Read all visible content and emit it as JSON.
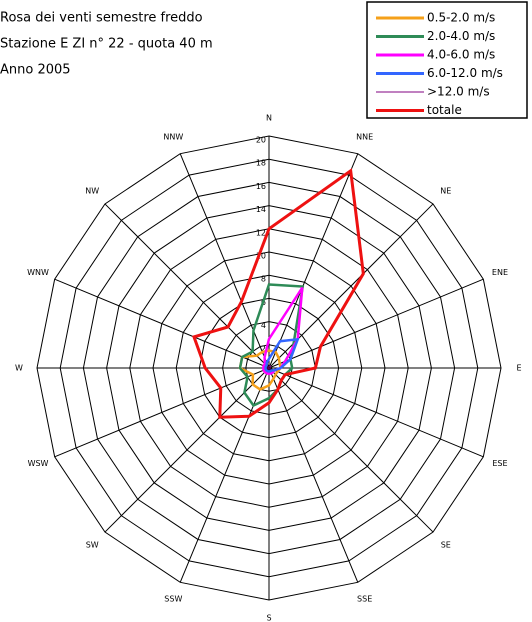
{
  "chart_data": {
    "type": "radar",
    "title": [
      "Rosa dei venti semestre freddo",
      "Stazione E ZI n° 22 - quota 40 m",
      "Anno 2005"
    ],
    "categories": [
      "N",
      "NNE",
      "NE",
      "ENE",
      "E",
      "ESE",
      "SE",
      "SSE",
      "S",
      "SSW",
      "SW",
      "WSW",
      "W",
      "WNW",
      "NW",
      "NNW"
    ],
    "rlim": [
      0,
      20
    ],
    "rticks": [
      2,
      4,
      6,
      8,
      10,
      12,
      14,
      16,
      18,
      20
    ],
    "legend": "upper right",
    "series": [
      {
        "name": "0.5-2.0 m/s",
        "color": "#f5a01a",
        "values": [
          1.5,
          1.5,
          1.2,
          1.0,
          1.0,
          0.8,
          0.8,
          1.0,
          1.5,
          2.0,
          2.0,
          1.5,
          2.5,
          2.5,
          1.5,
          1.5
        ]
      },
      {
        "name": "2.0-4.0 m/s",
        "color": "#2e8b57",
        "values": [
          7.2,
          7.6,
          3.0,
          2.0,
          2.0,
          1.5,
          1.5,
          2.0,
          2.6,
          3.5,
          3.0,
          2.0,
          2.5,
          2.5,
          2.0,
          3.5
        ]
      },
      {
        "name": "4.0-6.0 m/s",
        "color": "#ff00ff",
        "values": [
          2.5,
          7.5,
          3.5,
          1.5,
          1.0,
          0.5,
          0.5,
          0.5,
          0.5,
          0.5,
          0.5,
          0.5,
          0.5,
          0.5,
          0.5,
          1.0
        ]
      },
      {
        "name": "6.0-12.0 m/s",
        "color": "#3366ff",
        "values": [
          0.8,
          2.5,
          3.5,
          2.0,
          1.0,
          0.5,
          0.3,
          0.3,
          0.3,
          0.3,
          0.3,
          0.3,
          0.3,
          0.3,
          0.3,
          0.5
        ]
      },
      {
        "name": ">12.0 m/s",
        "color": "#800080",
        "values": [
          0.1,
          0.2,
          0.2,
          0.1,
          0.1,
          0.1,
          0.1,
          0.1,
          0.1,
          0.1,
          0.1,
          0.1,
          0.1,
          0.1,
          0.1,
          0.1
        ]
      },
      {
        "name": "totale",
        "color": "#ee1111",
        "values": [
          12,
          18.4,
          11.5,
          4.8,
          4.0,
          1.5,
          1.5,
          2.0,
          3.0,
          4.5,
          6.0,
          4.5,
          5.5,
          7.0,
          5.0,
          6.2
        ]
      }
    ]
  }
}
